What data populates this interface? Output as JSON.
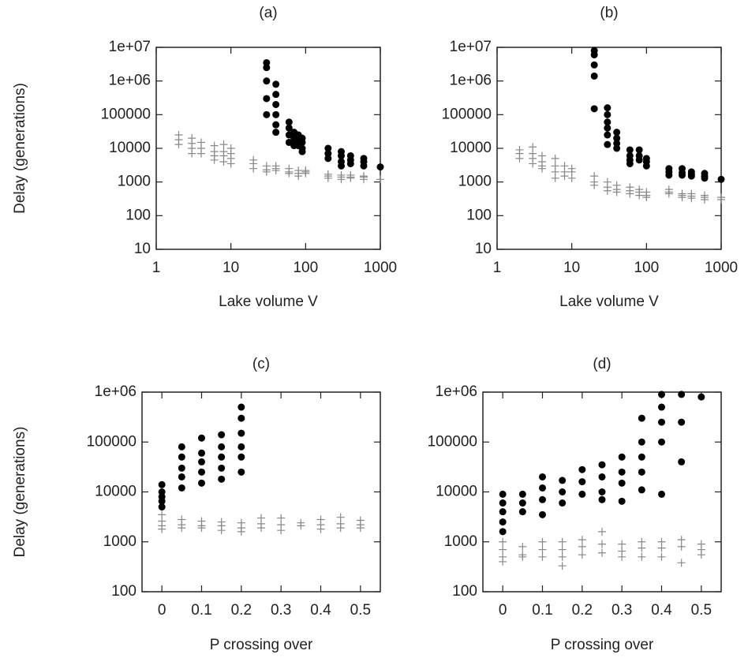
{
  "chart_data": [
    {
      "type": "scatter",
      "title": "(a)",
      "x_label": "Lake volume V",
      "y_label": "Delay (generations)",
      "xlog": true,
      "ylog": true,
      "xlim": [
        1,
        1000
      ],
      "ylim": [
        10,
        10000000
      ],
      "xticks": [
        1,
        10,
        100,
        1000
      ],
      "yticks": [
        10,
        100,
        1000,
        10000,
        100000,
        {
          "value": 1000000,
          "label": "1e+06"
        },
        {
          "value": 10000000,
          "label": "1e+07"
        }
      ],
      "series": [
        {
          "marker": "circle",
          "color": "#000000",
          "x": [
            30,
            30,
            30,
            30,
            30,
            40,
            40,
            40,
            40,
            40,
            40,
            60,
            60,
            60,
            60,
            70,
            70,
            70,
            70,
            80,
            80,
            80,
            90,
            90,
            90,
            90,
            200,
            200,
            200,
            300,
            300,
            300,
            300,
            400,
            400,
            400,
            600,
            600,
            600,
            1000
          ],
          "values": [
            3500000,
            2500000,
            1000000,
            300000,
            100000,
            800000,
            400000,
            200000,
            100000,
            50000,
            30000,
            60000,
            40000,
            25000,
            15000,
            30000,
            20000,
            15000,
            12000,
            25000,
            18000,
            12000,
            20000,
            15000,
            10000,
            8000,
            10000,
            7000,
            5000,
            8000,
            6000,
            4000,
            3000,
            6000,
            4500,
            3500,
            5000,
            4000,
            3000,
            2800
          ]
        },
        {
          "marker": "plus",
          "color": "#888888",
          "x": [
            2,
            2,
            2,
            3,
            3,
            3,
            3,
            4,
            4,
            4,
            6,
            6,
            6,
            6,
            8,
            8,
            8,
            8,
            10,
            10,
            10,
            10,
            20,
            20,
            20,
            30,
            30,
            30,
            40,
            40,
            40,
            60,
            60,
            60,
            80,
            80,
            80,
            100,
            100,
            100,
            200,
            200,
            200,
            300,
            300,
            300,
            400,
            400,
            400,
            600,
            600,
            600,
            1000
          ],
          "values": [
            25000,
            18000,
            13000,
            20000,
            14000,
            10000,
            7000,
            15000,
            10000,
            7000,
            12000,
            8000,
            6000,
            4500,
            13000,
            8000,
            6000,
            4000,
            10000,
            7000,
            5000,
            3500,
            4500,
            3500,
            2500,
            3000,
            2300,
            2000,
            3000,
            2500,
            2200,
            2500,
            2000,
            1800,
            2200,
            1800,
            1500,
            2200,
            2000,
            1800,
            1700,
            1500,
            1300,
            1600,
            1400,
            1200,
            1600,
            1400,
            1300,
            1500,
            1400,
            1200,
            1200
          ]
        }
      ]
    },
    {
      "type": "scatter",
      "title": "(b)",
      "x_label": "Lake volume V",
      "xlog": true,
      "ylog": true,
      "xlim": [
        1,
        1000
      ],
      "ylim": [
        10,
        10000000
      ],
      "xticks": [
        1,
        10,
        100,
        1000
      ],
      "yticks": [
        10,
        100,
        1000,
        10000,
        100000,
        {
          "value": 1000000,
          "label": "1e+06"
        },
        {
          "value": 10000000,
          "label": "1e+07"
        }
      ],
      "series": [
        {
          "marker": "circle",
          "color": "#000000",
          "x": [
            20,
            20,
            20,
            20,
            20,
            30,
            30,
            30,
            30,
            30,
            30,
            40,
            40,
            40,
            40,
            60,
            60,
            60,
            60,
            80,
            80,
            80,
            100,
            100,
            100,
            200,
            200,
            200,
            300,
            300,
            300,
            400,
            400,
            400,
            600,
            600,
            600,
            1000
          ],
          "values": [
            8000000,
            6000000,
            3000000,
            1400000,
            150000,
            160000,
            100000,
            60000,
            40000,
            25000,
            13000,
            30000,
            20000,
            14000,
            10000,
            9000,
            6000,
            4500,
            3500,
            9000,
            6000,
            4500,
            5000,
            4000,
            3000,
            2500,
            2000,
            1600,
            2500,
            1900,
            1600,
            2000,
            1700,
            1500,
            1800,
            1500,
            1300,
            1200
          ]
        },
        {
          "marker": "plus",
          "color": "#888888",
          "x": [
            2,
            2,
            2,
            3,
            3,
            3,
            3,
            4,
            4,
            4,
            4,
            6,
            6,
            6,
            6,
            8,
            8,
            8,
            10,
            10,
            10,
            20,
            20,
            20,
            30,
            30,
            30,
            40,
            40,
            40,
            60,
            60,
            60,
            80,
            80,
            80,
            100,
            100,
            100,
            200,
            200,
            200,
            300,
            300,
            300,
            400,
            400,
            400,
            600,
            600,
            600,
            1000,
            1000
          ],
          "values": [
            9000,
            7000,
            5000,
            11000,
            7000,
            5000,
            3500,
            6000,
            4000,
            3000,
            2500,
            5000,
            3000,
            2000,
            1300,
            3000,
            2000,
            1500,
            2500,
            2000,
            1300,
            1500,
            1000,
            800,
            1000,
            700,
            550,
            800,
            600,
            500,
            700,
            550,
            450,
            600,
            500,
            400,
            500,
            400,
            350,
            600,
            500,
            450,
            450,
            400,
            350,
            450,
            380,
            330,
            400,
            350,
            300,
            350,
            300
          ]
        }
      ]
    },
    {
      "type": "scatter",
      "title": "(c)",
      "x_label": "P crossing over",
      "y_label": "Delay (generations)",
      "xlog": false,
      "ylog": true,
      "xlim": [
        -0.05,
        0.55
      ],
      "ylim": [
        100,
        1000000
      ],
      "xticks": [
        0,
        0.1,
        0.2,
        0.3,
        0.4,
        0.5
      ],
      "yticks": [
        100,
        1000,
        10000,
        100000,
        {
          "value": 1000000,
          "label": "1e+06"
        }
      ],
      "series": [
        {
          "marker": "circle",
          "color": "#000000",
          "x": [
            0,
            0,
            0,
            0,
            0,
            0.05,
            0.05,
            0.05,
            0.05,
            0.05,
            0.1,
            0.1,
            0.1,
            0.1,
            0.1,
            0.15,
            0.15,
            0.15,
            0.15,
            0.15,
            0.2,
            0.2,
            0.2,
            0.2,
            0.2,
            0.2
          ],
          "values": [
            14000,
            10000,
            8000,
            6500,
            5000,
            80000,
            50000,
            30000,
            20000,
            12000,
            120000,
            60000,
            40000,
            25000,
            15000,
            140000,
            80000,
            50000,
            30000,
            18000,
            500000,
            300000,
            150000,
            80000,
            50000,
            25000
          ]
        },
        {
          "marker": "plus",
          "color": "#888888",
          "x": [
            0,
            0,
            0,
            0,
            0.05,
            0.05,
            0.05,
            0.1,
            0.1,
            0.1,
            0.15,
            0.15,
            0.15,
            0.2,
            0.2,
            0.2,
            0.25,
            0.25,
            0.25,
            0.3,
            0.3,
            0.3,
            0.35,
            0.35,
            0.4,
            0.4,
            0.4,
            0.45,
            0.45,
            0.45,
            0.5,
            0.5,
            0.5
          ],
          "values": [
            3500,
            2600,
            2100,
            1800,
            2800,
            2200,
            1900,
            2600,
            2100,
            1900,
            2500,
            2100,
            1700,
            2400,
            1900,
            1600,
            3000,
            2300,
            1900,
            3000,
            2200,
            1700,
            2400,
            2100,
            2800,
            2200,
            1800,
            3100,
            2300,
            1900,
            2700,
            2200,
            1900
          ]
        }
      ]
    },
    {
      "type": "scatter",
      "title": "(d)",
      "x_label": "P crossing over",
      "xlog": false,
      "ylog": true,
      "xlim": [
        -0.05,
        0.55
      ],
      "ylim": [
        100,
        1000000
      ],
      "xticks": [
        0,
        0.1,
        0.2,
        0.3,
        0.4,
        0.5
      ],
      "yticks": [
        100,
        1000,
        10000,
        100000,
        {
          "value": 1000000,
          "label": "1e+06"
        }
      ],
      "series": [
        {
          "marker": "circle",
          "color": "#000000",
          "x": [
            0,
            0,
            0,
            0,
            0,
            0.05,
            0.05,
            0.05,
            0.1,
            0.1,
            0.1,
            0.1,
            0.15,
            0.15,
            0.15,
            0.2,
            0.2,
            0.2,
            0.25,
            0.25,
            0.25,
            0.25,
            0.3,
            0.3,
            0.3,
            0.3,
            0.35,
            0.35,
            0.35,
            0.35,
            0.35,
            0.4,
            0.4,
            0.4,
            0.4,
            0.4,
            0.45,
            0.45,
            0.45,
            0.5
          ],
          "values": [
            9000,
            6000,
            4000,
            2500,
            1600,
            9000,
            6000,
            4000,
            20000,
            12000,
            7000,
            3500,
            17000,
            10000,
            6000,
            28000,
            16000,
            9000,
            35000,
            20000,
            10000,
            7000,
            50000,
            25000,
            15000,
            6500,
            300000,
            100000,
            50000,
            25000,
            11000,
            900000,
            500000,
            250000,
            100000,
            9000,
            900000,
            250000,
            40000,
            800000
          ]
        },
        {
          "marker": "plus",
          "color": "#888888",
          "x": [
            0,
            0,
            0,
            0,
            0.05,
            0.05,
            0.05,
            0.1,
            0.1,
            0.1,
            0.15,
            0.15,
            0.15,
            0.15,
            0.2,
            0.2,
            0.2,
            0.25,
            0.25,
            0.25,
            0.3,
            0.3,
            0.3,
            0.35,
            0.35,
            0.35,
            0.4,
            0.4,
            0.4,
            0.45,
            0.45,
            0.45,
            0.5,
            0.5,
            0.5
          ],
          "values": [
            1000,
            700,
            500,
            400,
            800,
            550,
            500,
            1000,
            700,
            500,
            1000,
            700,
            500,
            330,
            1100,
            800,
            550,
            1600,
            900,
            600,
            900,
            650,
            500,
            1000,
            750,
            500,
            1000,
            750,
            500,
            1100,
            800,
            380,
            900,
            700,
            550
          ]
        }
      ]
    }
  ]
}
